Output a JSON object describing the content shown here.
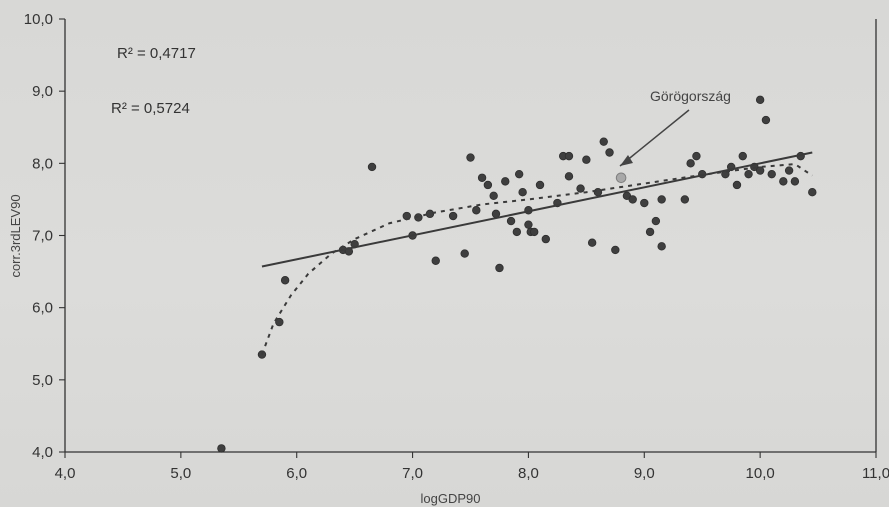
{
  "chart_data": {
    "type": "scatter",
    "xlabel": "logGDP90",
    "ylabel": "corr.3rdLEV90",
    "xlim": [
      4.0,
      11.0
    ],
    "ylim": [
      4.0,
      10.0
    ],
    "x_ticks": [
      "4,0",
      "5,0",
      "6,0",
      "7,0",
      "8,0",
      "9,0",
      "10,0",
      "11,0"
    ],
    "y_ticks": [
      "4,0",
      "5,0",
      "6,0",
      "7,0",
      "8,0",
      "9,0",
      "10,0"
    ],
    "grid": false,
    "annotations": {
      "r2_linear": "R² = 0,4717",
      "r2_curve": "R² = 0,5724",
      "highlight_label": "Görögország"
    },
    "highlight_point": {
      "x": 8.8,
      "y": 7.8
    },
    "series": [
      {
        "points": [
          [
            5.35,
            4.05
          ],
          [
            5.7,
            5.35
          ],
          [
            5.85,
            5.8
          ],
          [
            5.9,
            6.38
          ],
          [
            6.4,
            6.8
          ],
          [
            6.45,
            6.78
          ],
          [
            6.5,
            6.88
          ],
          [
            6.65,
            7.95
          ],
          [
            6.95,
            7.27
          ],
          [
            7.0,
            7.0
          ],
          [
            7.05,
            7.25
          ],
          [
            7.15,
            7.3
          ],
          [
            7.2,
            6.65
          ],
          [
            7.35,
            7.27
          ],
          [
            7.45,
            6.75
          ],
          [
            7.5,
            8.08
          ],
          [
            7.55,
            7.35
          ],
          [
            7.6,
            7.8
          ],
          [
            7.65,
            7.7
          ],
          [
            7.7,
            7.55
          ],
          [
            7.72,
            7.3
          ],
          [
            7.75,
            6.55
          ],
          [
            7.8,
            7.75
          ],
          [
            7.85,
            7.2
          ],
          [
            7.9,
            7.05
          ],
          [
            7.92,
            7.85
          ],
          [
            7.95,
            7.6
          ],
          [
            8.0,
            7.15
          ],
          [
            8.0,
            7.35
          ],
          [
            8.02,
            7.05
          ],
          [
            8.05,
            7.05
          ],
          [
            8.1,
            7.7
          ],
          [
            8.15,
            6.95
          ],
          [
            8.25,
            7.45
          ],
          [
            8.3,
            8.1
          ],
          [
            8.35,
            8.1
          ],
          [
            8.35,
            7.82
          ],
          [
            8.45,
            7.65
          ],
          [
            8.5,
            8.05
          ],
          [
            8.55,
            6.9
          ],
          [
            8.6,
            7.6
          ],
          [
            8.65,
            8.3
          ],
          [
            8.7,
            8.15
          ],
          [
            8.75,
            6.8
          ],
          [
            8.85,
            7.55
          ],
          [
            8.9,
            7.5
          ],
          [
            9.0,
            7.45
          ],
          [
            9.05,
            7.05
          ],
          [
            9.1,
            7.2
          ],
          [
            9.15,
            6.85
          ],
          [
            9.15,
            7.5
          ],
          [
            9.35,
            7.5
          ],
          [
            9.4,
            8.0
          ],
          [
            9.45,
            8.1
          ],
          [
            9.5,
            7.85
          ],
          [
            9.7,
            7.85
          ],
          [
            9.75,
            7.95
          ],
          [
            9.8,
            7.7
          ],
          [
            9.85,
            8.1
          ],
          [
            9.9,
            7.85
          ],
          [
            9.95,
            7.95
          ],
          [
            10.0,
            8.88
          ],
          [
            10.05,
            8.6
          ],
          [
            10.0,
            7.9
          ],
          [
            10.1,
            7.85
          ],
          [
            10.2,
            7.75
          ],
          [
            10.25,
            7.9
          ],
          [
            10.3,
            7.75
          ],
          [
            10.35,
            8.1
          ],
          [
            10.45,
            7.6
          ]
        ]
      },
      {
        "type": "line",
        "points": [
          [
            5.7,
            6.57
          ],
          [
            10.45,
            8.15
          ]
        ]
      },
      {
        "type": "curve",
        "points": [
          [
            5.7,
            5.35
          ],
          [
            5.8,
            5.78
          ],
          [
            5.95,
            6.17
          ],
          [
            6.1,
            6.47
          ],
          [
            6.3,
            6.75
          ],
          [
            6.5,
            6.95
          ],
          [
            6.8,
            7.17
          ],
          [
            7.2,
            7.32
          ],
          [
            7.6,
            7.43
          ],
          [
            8.0,
            7.5
          ],
          [
            8.5,
            7.6
          ],
          [
            9.0,
            7.72
          ],
          [
            9.5,
            7.84
          ],
          [
            10.0,
            7.95
          ],
          [
            10.3,
            7.99
          ],
          [
            10.45,
            7.83
          ]
        ]
      }
    ]
  }
}
